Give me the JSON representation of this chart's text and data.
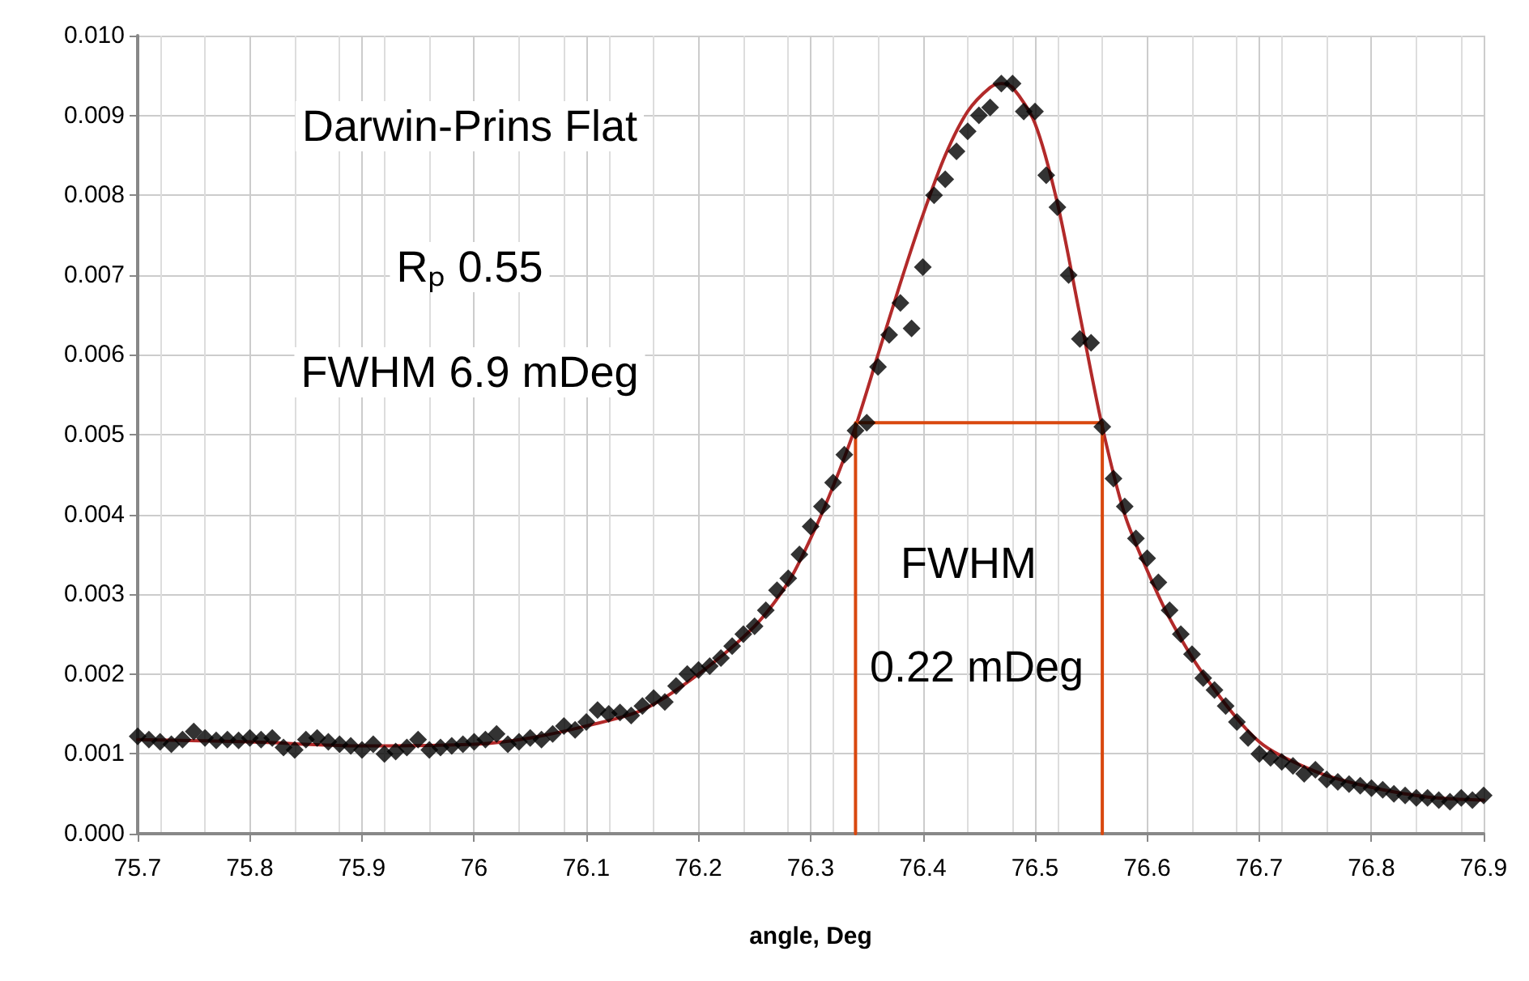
{
  "chart_data": {
    "type": "scatter",
    "xlabel": "angle, Deg",
    "annotations": [
      "Darwin-Prins Flat",
      "Rₚ 0.55",
      "FWHM 6.9 mDeg",
      "FWHM",
      "0.22 mDeg"
    ],
    "xlim": [
      75.7,
      76.9
    ],
    "xticks": [
      75.7,
      75.8,
      75.9,
      76,
      76.1,
      76.2,
      76.3,
      76.4,
      76.5,
      76.6,
      76.7,
      76.8,
      76.9
    ],
    "ylim": [
      0,
      0.01
    ],
    "yticks": [
      {
        "value": 0,
        "label": "0.000"
      },
      {
        "value": 0.001,
        "label": "0.001"
      },
      {
        "value": 0.002,
        "label": "0.002"
      },
      {
        "value": 0.003,
        "label": "0.003"
      },
      {
        "value": 0.004,
        "label": "0.004"
      },
      {
        "value": 0.005,
        "label": "0.005"
      },
      {
        "value": 0.006,
        "label": "0.006"
      },
      {
        "value": 0.007,
        "label": "0.007"
      },
      {
        "value": 0.008,
        "label": "0.008"
      },
      {
        "value": 0.009,
        "label": "0.009"
      },
      {
        "value": 0.01,
        "label": "0.010"
      }
    ],
    "grid": true,
    "series": [
      {
        "marker": "diamond",
        "color": "#000000",
        "x": [
          75.7,
          75.71,
          75.72,
          75.73,
          75.74,
          75.75,
          75.76,
          75.77,
          75.78,
          75.79,
          75.8,
          75.81,
          75.82,
          75.83,
          75.84,
          75.85,
          75.86,
          75.87,
          75.88,
          75.89,
          75.9,
          75.91,
          75.92,
          75.93,
          75.94,
          75.95,
          75.96,
          75.97,
          75.98,
          75.99,
          76.0,
          76.01,
          76.02,
          76.03,
          76.04,
          76.05,
          76.06,
          76.07,
          76.08,
          76.09,
          76.1,
          76.11,
          76.12,
          76.13,
          76.14,
          76.15,
          76.16,
          76.17,
          76.18,
          76.19,
          76.2,
          76.21,
          76.22,
          76.23,
          76.24,
          76.25,
          76.26,
          76.27,
          76.28,
          76.29,
          76.3,
          76.31,
          76.32,
          76.33,
          76.34,
          76.35,
          76.36,
          76.37,
          76.38,
          76.39,
          76.4,
          76.41,
          76.42,
          76.43,
          76.44,
          76.45,
          76.46,
          76.47,
          76.48,
          76.49,
          76.5,
          76.51,
          76.52,
          76.53,
          76.54,
          76.55,
          76.56,
          76.57,
          76.58,
          76.59,
          76.6,
          76.61,
          76.62,
          76.63,
          76.64,
          76.65,
          76.66,
          76.67,
          76.68,
          76.69,
          76.7,
          76.71,
          76.72,
          76.73,
          76.74,
          76.75,
          76.76,
          76.77,
          76.78,
          76.79,
          76.8,
          76.81,
          76.82,
          76.83,
          76.84,
          76.85,
          76.86,
          76.87,
          76.88,
          76.89,
          76.9
        ],
        "values": [
          0.00122,
          0.00118,
          0.00115,
          0.00112,
          0.00118,
          0.00128,
          0.0012,
          0.00117,
          0.00118,
          0.00117,
          0.0012,
          0.00118,
          0.0012,
          0.00108,
          0.00105,
          0.00118,
          0.0012,
          0.00115,
          0.00112,
          0.0011,
          0.00105,
          0.00112,
          0.001,
          0.00103,
          0.00108,
          0.00118,
          0.00105,
          0.00108,
          0.0011,
          0.00112,
          0.00115,
          0.00118,
          0.00125,
          0.00112,
          0.00115,
          0.0012,
          0.00118,
          0.00125,
          0.00135,
          0.0013,
          0.0014,
          0.00155,
          0.0015,
          0.00152,
          0.00148,
          0.0016,
          0.0017,
          0.00165,
          0.00185,
          0.002,
          0.00205,
          0.0021,
          0.0022,
          0.00235,
          0.0025,
          0.0026,
          0.0028,
          0.00305,
          0.0032,
          0.0035,
          0.00385,
          0.0041,
          0.0044,
          0.00475,
          0.00505,
          0.00515,
          0.00585,
          0.00625,
          0.00665,
          0.00633,
          0.0071,
          0.008,
          0.0082,
          0.00855,
          0.0088,
          0.009,
          0.0091,
          0.0094,
          0.0094,
          0.00905,
          0.00905,
          0.00825,
          0.00785,
          0.007,
          0.0062,
          0.00615,
          0.0051,
          0.00445,
          0.0041,
          0.0037,
          0.00345,
          0.00315,
          0.0028,
          0.0025,
          0.00225,
          0.00195,
          0.0018,
          0.0016,
          0.0014,
          0.0012,
          0.001,
          0.00095,
          0.0009,
          0.00085,
          0.00075,
          0.0008,
          0.00068,
          0.00065,
          0.00062,
          0.0006,
          0.00057,
          0.00055,
          0.0005,
          0.00048,
          0.00045,
          0.00045,
          0.00042,
          0.0004,
          0.00045,
          0.00042,
          0.00048
        ]
      },
      {
        "type": "line",
        "marker": "none",
        "color": "#b22a2a",
        "x": [
          75.7,
          75.8,
          75.9,
          76.0,
          76.05,
          76.1,
          76.15,
          76.2,
          76.25,
          76.28,
          76.3,
          76.32,
          76.34,
          76.36,
          76.38,
          76.4,
          76.42,
          76.44,
          76.46,
          76.47,
          76.48,
          76.5,
          76.52,
          76.54,
          76.56,
          76.58,
          76.6,
          76.62,
          76.65,
          76.7,
          76.75,
          76.8,
          76.85,
          76.9
        ],
        "values": [
          0.00118,
          0.00115,
          0.0011,
          0.00112,
          0.0012,
          0.00135,
          0.00155,
          0.002,
          0.0026,
          0.00315,
          0.0037,
          0.00435,
          0.0051,
          0.006,
          0.0069,
          0.00775,
          0.0085,
          0.00905,
          0.00935,
          0.0094,
          0.00935,
          0.0089,
          0.0079,
          0.0065,
          0.0051,
          0.004,
          0.0033,
          0.0027,
          0.002,
          0.00115,
          0.00078,
          0.00058,
          0.00046,
          0.00042
        ]
      },
      {
        "type": "line",
        "marker": "none",
        "color": "#d9480f",
        "x": [
          76.34,
          76.34,
          76.56,
          76.56
        ],
        "values": [
          0,
          0.00515,
          0.00515,
          0
        ]
      }
    ]
  }
}
